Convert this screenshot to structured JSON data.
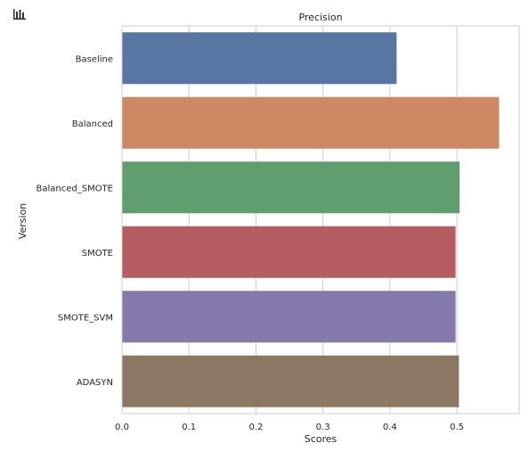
{
  "toolbar": {
    "icon": "bar-chart-icon"
  },
  "colors": {
    "background": "#ffffff",
    "plot_background": "#ffffff",
    "grid": "#cccccc",
    "frame": "#cccccc",
    "text": "#262626"
  },
  "chart_data": {
    "type": "bar",
    "orientation": "horizontal",
    "title": "Precision",
    "xlabel": "Scores",
    "ylabel": "Version",
    "categories": [
      "Baseline",
      "Balanced",
      "Balanced_SMOTE",
      "SMOTE",
      "SMOTE_SVM",
      "ADASYN"
    ],
    "values": [
      0.41,
      0.563,
      0.504,
      0.498,
      0.498,
      0.503
    ],
    "colors": [
      "#5875a4",
      "#cc8963",
      "#5f9e6e",
      "#b55d60",
      "#857aab",
      "#8d7866"
    ],
    "xlim": [
      0,
      0.593
    ],
    "xticks": [
      0.0,
      0.1,
      0.2,
      0.3,
      0.4,
      0.5
    ],
    "xtick_labels": [
      "0.0",
      "0.1",
      "0.2",
      "0.3",
      "0.4",
      "0.5"
    ],
    "grid": true,
    "legend": "none"
  }
}
